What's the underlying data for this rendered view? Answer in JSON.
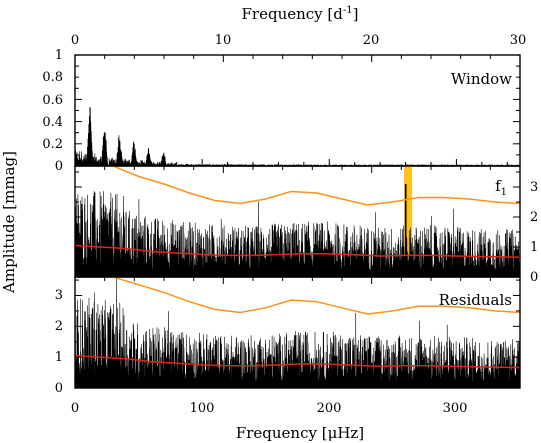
{
  "chart_data": {
    "type": "line",
    "top_axis_label": "Frequency [d",
    "top_axis_label_exp": "-1",
    "top_axis_label_end": "]",
    "bottom_axis_label": "Frequency [μHz]",
    "y_axis_label": "Amplitude [mmag]",
    "top_xticks": [
      "0",
      "10",
      "20",
      "30"
    ],
    "bottom_xticks": [
      "0",
      "100",
      "200",
      "300"
    ],
    "x_range_uHz": [
      0,
      350
    ],
    "x_range_d": [
      0,
      30
    ],
    "panels": [
      {
        "label": "Window",
        "ylim": [
          0,
          1
        ],
        "yticks": [
          "0",
          "0.2",
          "0.4",
          "0.6",
          "0.8",
          "1"
        ],
        "ytick_side": "left",
        "series": [
          {
            "color": "#000000",
            "peaks": [
              [
                11.6,
                0.68
              ],
              [
                23.2,
                0.4
              ],
              [
                34.8,
                0.3
              ],
              [
                46.3,
                0.25
              ],
              [
                57.9,
                0.18
              ],
              [
                69.5,
                0.14
              ]
            ],
            "noise_level": 0.03
          }
        ]
      },
      {
        "label": "f",
        "label_sub": "1",
        "ylim": [
          0,
          3.7
        ],
        "yticks": [
          "0",
          "1",
          "2",
          "3"
        ],
        "ytick_side": "right",
        "highlight_band_uHz": [
          258,
          262
        ],
        "highlight_color": "#ffc21a",
        "series": [
          {
            "name": "amplitude",
            "color": "#000000",
            "peak": [
              260.1,
              3.1
            ]
          },
          {
            "name": "threshold",
            "color": "#f7941d",
            "x": [
              30,
              50,
              70,
              90,
              110,
              130,
              150,
              170,
              190,
              210,
              230,
              250,
              270,
              290,
              310,
              330,
              350
            ],
            "y": [
              3.8,
              3.35,
              3.1,
              2.8,
              2.55,
              2.45,
              2.6,
              2.85,
              2.8,
              2.6,
              2.4,
              2.5,
              2.65,
              2.65,
              2.6,
              2.5,
              2.45
            ]
          },
          {
            "name": "mean noise",
            "color": "#e2231a",
            "x": [
              0,
              20,
              40,
              60,
              80,
              100,
              120,
              140,
              160,
              180,
              200,
              220,
              240,
              260,
              280,
              300,
              320,
              350
            ],
            "y": [
              1.05,
              1.0,
              0.95,
              0.85,
              0.8,
              0.75,
              0.72,
              0.72,
              0.75,
              0.78,
              0.77,
              0.74,
              0.7,
              0.72,
              0.72,
              0.7,
              0.68,
              0.66
            ]
          }
        ]
      },
      {
        "label": "Residuals",
        "ylim": [
          0,
          3.6
        ],
        "yticks": [
          "0",
          "1",
          "2",
          "3"
        ],
        "ytick_side": "left",
        "series": [
          {
            "name": "amplitude",
            "color": "#000000"
          },
          {
            "name": "threshold",
            "color": "#f7941d",
            "x": [
              30,
              50,
              70,
              90,
              110,
              130,
              150,
              170,
              190,
              210,
              230,
              250,
              270,
              290,
              310,
              330,
              350
            ],
            "y": [
              3.8,
              3.35,
              3.1,
              2.8,
              2.55,
              2.45,
              2.6,
              2.85,
              2.8,
              2.6,
              2.4,
              2.5,
              2.65,
              2.65,
              2.6,
              2.5,
              2.45
            ]
          },
          {
            "name": "mean noise",
            "color": "#e2231a",
            "x": [
              0,
              20,
              40,
              60,
              80,
              100,
              120,
              140,
              160,
              180,
              200,
              220,
              240,
              260,
              280,
              300,
              320,
              350
            ],
            "y": [
              1.05,
              1.0,
              0.95,
              0.85,
              0.8,
              0.75,
              0.72,
              0.72,
              0.75,
              0.78,
              0.77,
              0.74,
              0.7,
              0.72,
              0.72,
              0.7,
              0.68,
              0.66
            ]
          }
        ]
      }
    ]
  }
}
